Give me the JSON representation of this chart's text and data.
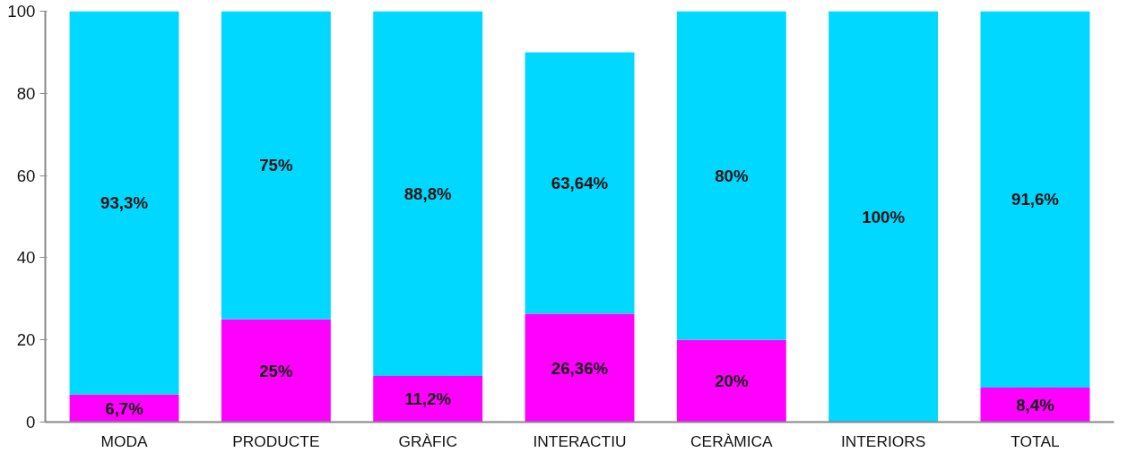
{
  "chart_data": {
    "type": "bar",
    "stacked": true,
    "categories": [
      "MODA",
      "PRODUCTE",
      "GRÀFIC",
      "INTERACTIU",
      "CERÀMICA",
      "INTERIORS",
      "TOTAL"
    ],
    "series": [
      {
        "color": "#ff00ff",
        "values": [
          6.7,
          25,
          11.2,
          26.36,
          20,
          0,
          8.4
        ],
        "value_labels": [
          "6,7%",
          "25%",
          "11,2%",
          "26,36%",
          "20%",
          null,
          "8,4%"
        ]
      },
      {
        "color": "#00d8ff",
        "values": [
          93.3,
          75,
          88.8,
          63.64,
          80,
          100,
          91.6
        ],
        "value_labels": [
          "93,3%",
          "75%",
          "88,8%",
          "63,64%",
          "80%",
          "100%",
          "91,6%"
        ]
      }
    ],
    "ylim": [
      0,
      100
    ],
    "yticks": [
      0,
      20,
      40,
      60,
      80,
      100
    ]
  }
}
